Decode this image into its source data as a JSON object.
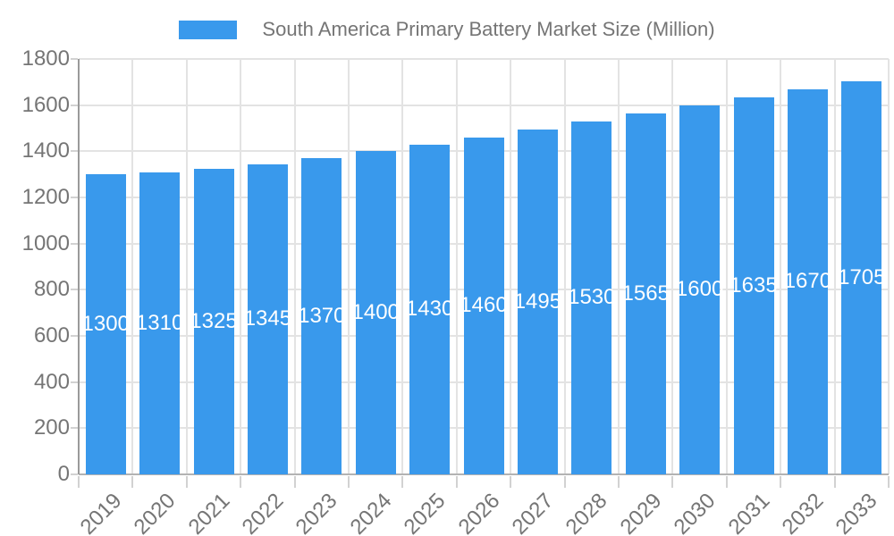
{
  "colors": {
    "bar": "#3999EC",
    "grid": "#e3e3e3",
    "axis_y": "#9a9a9a",
    "axis_x": "#b3b3b3",
    "tick": "#d2d2d2",
    "text": "#757575",
    "value_label": "#ffffff",
    "background": "#ffffff"
  },
  "chart_data": {
    "type": "bar",
    "title": "South America Primary Battery Market Size (Million)",
    "categories": [
      "2019",
      "2020",
      "2021",
      "2022",
      "2023",
      "2024",
      "2025",
      "2026",
      "2027",
      "2028",
      "2029",
      "2030",
      "2031",
      "2032",
      "2033"
    ],
    "series": [
      {
        "name": "South America Primary Battery Market Size (Million)",
        "values": [
          1300,
          1310,
          1325,
          1345,
          1370,
          1400,
          1430,
          1460,
          1495,
          1530,
          1565,
          1600,
          1635,
          1670,
          1705
        ]
      }
    ],
    "xlabel": "",
    "ylabel": "",
    "ylim": [
      0,
      1800
    ],
    "ytick_step": 200,
    "yticks": [
      0,
      200,
      400,
      600,
      800,
      1000,
      1200,
      1400,
      1600,
      1800
    ],
    "grid": true,
    "legend_position": "top",
    "x_tick_rotation": -45,
    "value_labels": "inside-middle"
  }
}
